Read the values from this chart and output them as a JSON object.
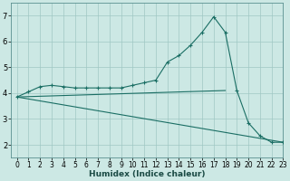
{
  "xlabel": "Humidex (Indice chaleur)",
  "background_color": "#cce8e4",
  "grid_color": "#a0c8c4",
  "line_color": "#1a6e64",
  "xlim": [
    -0.5,
    23
  ],
  "ylim": [
    1.5,
    7.5
  ],
  "yticks": [
    2,
    3,
    4,
    5,
    6,
    7
  ],
  "xticks": [
    0,
    1,
    2,
    3,
    4,
    5,
    6,
    7,
    8,
    9,
    10,
    11,
    12,
    13,
    14,
    15,
    16,
    17,
    18,
    19,
    20,
    21,
    22,
    23
  ],
  "series1_x": [
    0,
    1,
    2,
    3,
    4,
    5,
    6,
    7,
    8,
    9,
    10,
    11,
    12,
    13,
    14,
    15,
    16,
    17,
    18,
    19,
    20,
    21,
    22,
    23
  ],
  "series1_y": [
    3.85,
    4.05,
    4.25,
    4.3,
    4.25,
    4.2,
    4.2,
    4.2,
    4.2,
    4.2,
    4.3,
    4.4,
    4.5,
    5.2,
    5.45,
    5.85,
    6.35,
    6.95,
    6.35,
    4.1,
    2.85,
    2.35,
    2.1,
    2.1
  ],
  "series2_x": [
    0,
    18
  ],
  "series2_y": [
    3.85,
    4.1
  ],
  "series3_x": [
    0,
    23
  ],
  "series3_y": [
    3.85,
    2.1
  ],
  "tick_fontsize": 5.5,
  "xlabel_fontsize": 6.5
}
